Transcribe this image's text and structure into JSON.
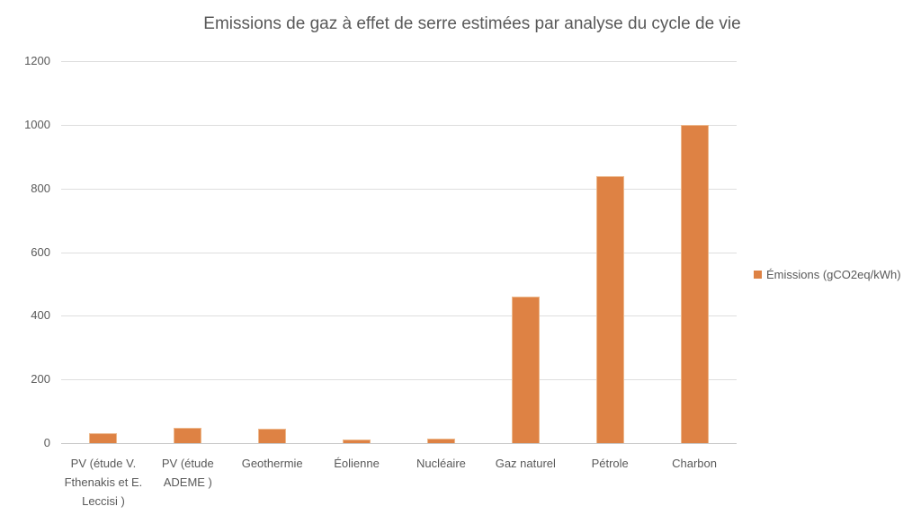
{
  "chart_data": {
    "type": "bar",
    "title": "Emissions de gaz à effet de serre estimées par analyse du cycle de vie",
    "categories": [
      "PV (étude V. Fthenakis et E. Leccisi )",
      "PV (étude ADEME )",
      "Geothermie",
      "Éolienne",
      "Nucléaire",
      "Gaz naturel",
      "Pétrole",
      "Charbon"
    ],
    "series": [
      {
        "name": "Émissions (gCO2eq/kWh)",
        "values": [
          32,
          48,
          45,
          12,
          15,
          460,
          840,
          1000
        ]
      }
    ],
    "yticks": [
      0,
      200,
      400,
      600,
      800,
      1000,
      1200
    ],
    "ylim": [
      0,
      1200
    ],
    "xlabel": "",
    "ylabel": "",
    "grid": true,
    "legend_position": "right",
    "colors": {
      "bar_fill": "#de8244",
      "bar_edge": "#edb88c",
      "gridline": "#dedede",
      "axis_line": "#c9c9c9",
      "text": "#595959"
    }
  }
}
